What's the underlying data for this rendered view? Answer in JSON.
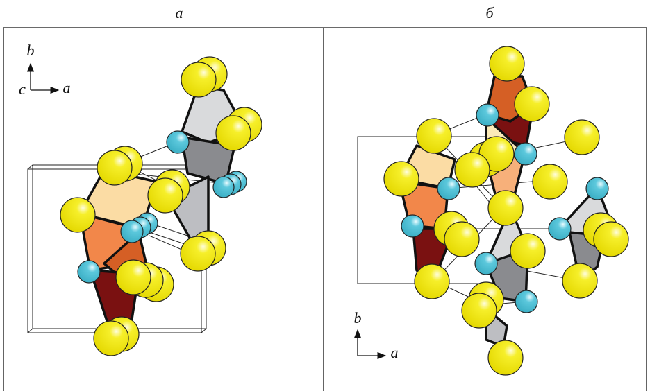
{
  "panels": [
    {
      "label": "а",
      "axes": {
        "vertical": "b",
        "depth": "c",
        "horizontal": "a"
      }
    },
    {
      "label": "б",
      "axes": {
        "vertical": "b",
        "horizontal": "a"
      }
    }
  ]
}
